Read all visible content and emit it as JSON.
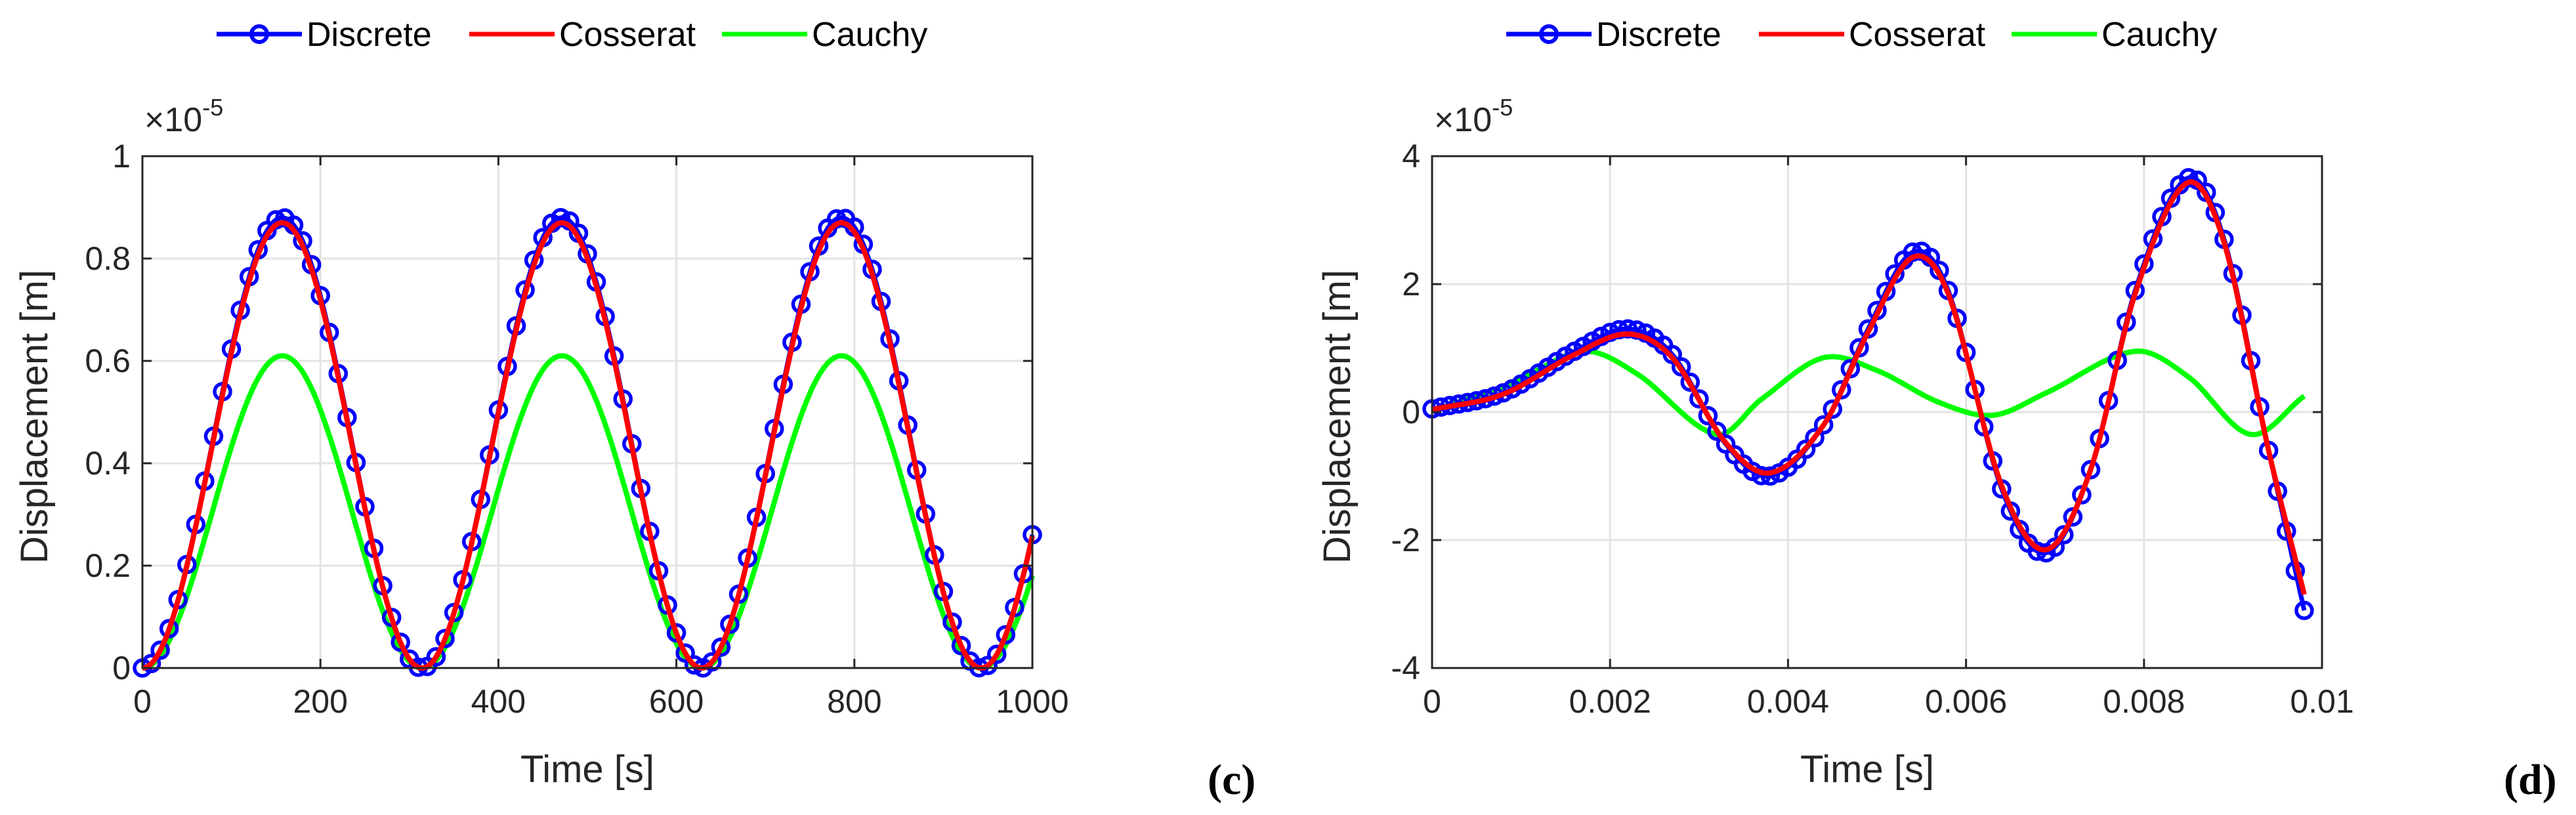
{
  "colors": {
    "discrete": "#0000ff",
    "cosserat": "#ff0000",
    "cauchy": "#00ff00",
    "grid": "#e3e3e3",
    "axis": "#262626"
  },
  "chart_data": [
    {
      "type": "line",
      "panel_label": "(c)",
      "xlabel": "Time [s]",
      "ylabel": "Displacement [m]",
      "y_exponent_base": "×10",
      "y_exponent_power": "-5",
      "xlim": [
        0,
        1000
      ],
      "ylim": [
        0,
        1
      ],
      "x_ticks": [
        0,
        200,
        400,
        600,
        800,
        1000
      ],
      "x_tick_labels": [
        "0",
        "200",
        "400",
        "600",
        "800",
        "1000"
      ],
      "y_ticks": [
        0,
        0.2,
        0.4,
        0.6,
        0.8,
        1
      ],
      "y_tick_labels": [
        "0",
        "0.2",
        "0.4",
        "0.6",
        "0.8",
        "1"
      ],
      "grid": true,
      "legend": [
        "Discrete",
        "Cosserat",
        "Cauchy"
      ],
      "legend_placement": "top-center-outside",
      "series_model": {
        "Discrete": "y = 0.44*(1 - cos(2*pi*t/314.16)), markers every 10 s",
        "Cosserat": "y = 0.435*(1 - cos(2*pi*t/314.16))",
        "Cauchy": "y = 0.305*(1 - cos(2*pi*t/314.16))"
      },
      "series": [
        {
          "name": "Discrete",
          "amplitude_peak": 0.88,
          "period": 314.16,
          "marker": "circle",
          "x_step": 10
        },
        {
          "name": "Cosserat",
          "amplitude_peak": 0.87,
          "period": 314.16
        },
        {
          "name": "Cauchy",
          "amplitude_peak": 0.61,
          "period": 314.16
        }
      ]
    },
    {
      "type": "line",
      "panel_label": "(d)",
      "xlabel": "Time [s]",
      "ylabel": "Displacement [m]",
      "y_exponent_base": "×10",
      "y_exponent_power": "-5",
      "xlim": [
        0,
        0.01
      ],
      "ylim": [
        -4,
        4
      ],
      "x_ticks": [
        0,
        0.002,
        0.004,
        0.006,
        0.008,
        0.01
      ],
      "x_tick_labels": [
        "0",
        "0.002",
        "0.004",
        "0.006",
        "0.008",
        "0.01"
      ],
      "y_ticks": [
        -4,
        -2,
        0,
        2,
        4
      ],
      "y_tick_labels": [
        "-4",
        "-2",
        "0",
        "2",
        "4"
      ],
      "grid": true,
      "legend": [
        "Discrete",
        "Cosserat",
        "Cauchy"
      ],
      "legend_placement": "top-center-outside",
      "series": [
        {
          "name": "Discrete",
          "marker": "circle",
          "x_step": 0.0001,
          "x_end": 0.0098,
          "knots": [
            [
              0,
              0.05
            ],
            [
              0.0008,
              0.3
            ],
            [
              0.0016,
              0.95
            ],
            [
              0.0022,
              1.3
            ],
            [
              0.0027,
              0.9
            ],
            [
              0.0033,
              -0.5
            ],
            [
              0.0038,
              -1.0
            ],
            [
              0.0044,
              -0.2
            ],
            [
              0.0049,
              1.3
            ],
            [
              0.0054,
              2.5
            ],
            [
              0.0058,
              1.9
            ],
            [
              0.0064,
              -1.2
            ],
            [
              0.0069,
              -2.2
            ],
            [
              0.0074,
              -0.9
            ],
            [
              0.0079,
              1.9
            ],
            [
              0.00848,
              3.65
            ],
            [
              0.0089,
              2.7
            ],
            [
              0.0094,
              -0.6
            ],
            [
              0.0098,
              -3.1
            ]
          ]
        },
        {
          "name": "Cosserat",
          "x_step": 5e-05,
          "x_end": 0.0098,
          "knots": [
            [
              0,
              0.04
            ],
            [
              0.0008,
              0.28
            ],
            [
              0.0016,
              0.9
            ],
            [
              0.0022,
              1.22
            ],
            [
              0.0027,
              0.85
            ],
            [
              0.0033,
              -0.48
            ],
            [
              0.0038,
              -0.95
            ],
            [
              0.0044,
              -0.2
            ],
            [
              0.0049,
              1.25
            ],
            [
              0.0054,
              2.42
            ],
            [
              0.0058,
              1.85
            ],
            [
              0.0064,
              -1.15
            ],
            [
              0.0069,
              -2.15
            ],
            [
              0.0074,
              -0.9
            ],
            [
              0.0079,
              1.85
            ],
            [
              0.00848,
              3.58
            ],
            [
              0.0089,
              2.65
            ],
            [
              0.0094,
              -0.6
            ],
            [
              0.0098,
              -2.85
            ]
          ]
        },
        {
          "name": "Cauchy",
          "x_step": 5e-05,
          "x_end": 0.0098,
          "knots": [
            [
              0,
              0.02
            ],
            [
              0.0009,
              0.45
            ],
            [
              0.0017,
              0.95
            ],
            [
              0.0023,
              0.6
            ],
            [
              0.0032,
              -0.35
            ],
            [
              0.0037,
              0.2
            ],
            [
              0.0044,
              0.85
            ],
            [
              0.005,
              0.65
            ],
            [
              0.0057,
              0.15
            ],
            [
              0.0063,
              -0.05
            ],
            [
              0.0069,
              0.3
            ],
            [
              0.0079,
              0.95
            ],
            [
              0.0085,
              0.55
            ],
            [
              0.0092,
              -0.35
            ],
            [
              0.0098,
              0.25
            ]
          ]
        }
      ]
    }
  ]
}
